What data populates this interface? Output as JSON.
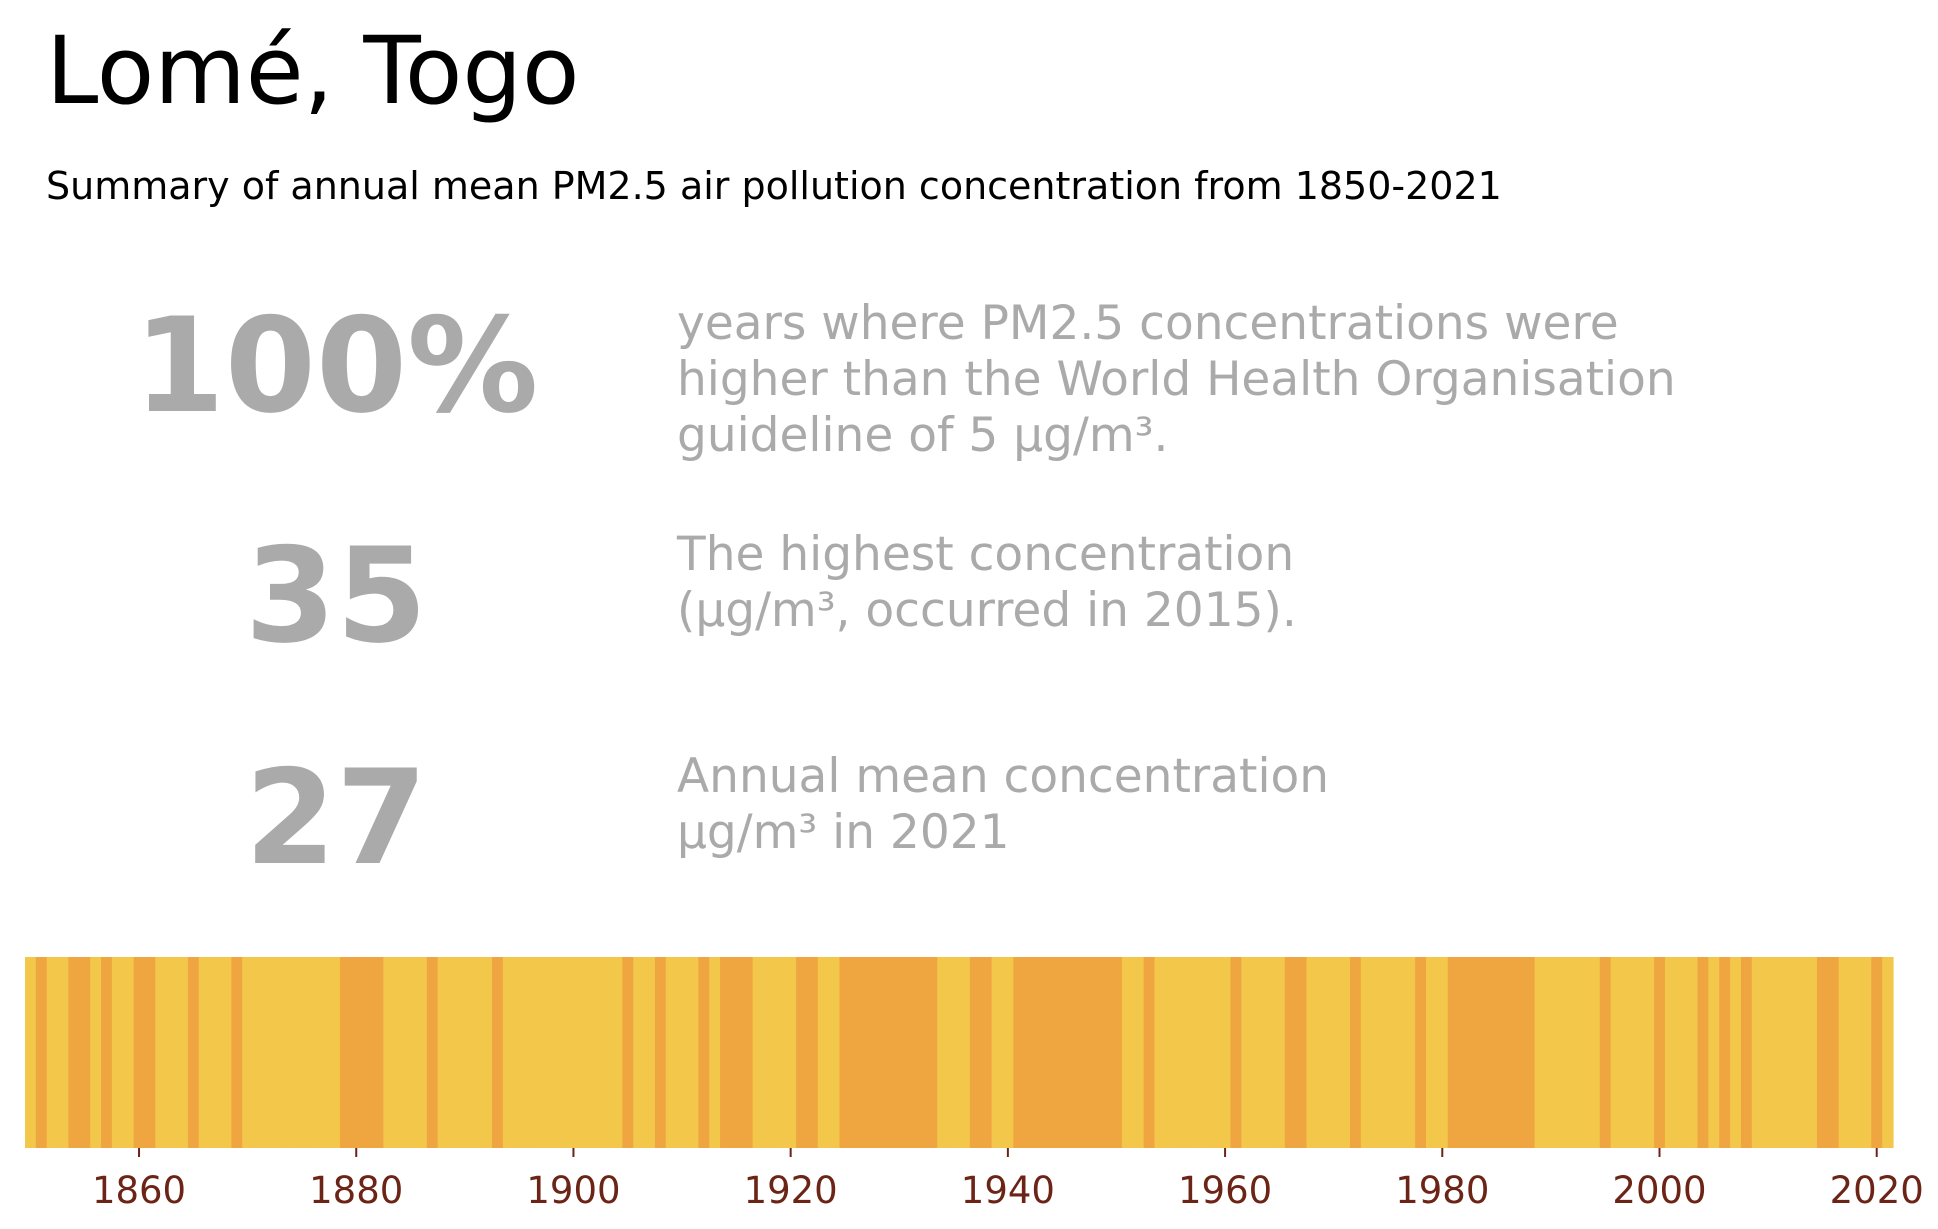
{
  "header": {
    "title": "Lomé, Togo",
    "subtitle": "Summary of annual mean PM2.5 air pollution concentration from 1850-2021"
  },
  "stats": [
    {
      "value": "100%",
      "description": "years where PM2.5 concentrations were\nhigher than the World Health Organisation\nguideline of 5 µg/m³."
    },
    {
      "value": "35",
      "description": "The highest concentration\n(µg/m³, occurred in 2015)."
    },
    {
      "value": "27",
      "description": "Annual mean concentration\nµg/m³ in 2021"
    }
  ],
  "colors": {
    "light_stripe": "#f2c74a",
    "dark_stripe": "#f0a640",
    "stat_text": "#aaaaaa",
    "tick_label": "#6b2416"
  },
  "chart_data": {
    "type": "heatmap",
    "x_range": [
      1850,
      2021
    ],
    "xticks": [
      1860,
      1880,
      1900,
      1920,
      1940,
      1960,
      1980,
      2000,
      2020
    ],
    "light_years": [
      1850,
      1852,
      1853,
      1856,
      1858,
      1859,
      1862,
      1863,
      1864,
      1866,
      1867,
      1868,
      1870,
      1871,
      1872,
      1873,
      1874,
      1875,
      1876,
      1877,
      1878,
      1883,
      1884,
      1885,
      1886,
      1888,
      1889,
      1890,
      1891,
      1892,
      1894,
      1895,
      1896,
      1897,
      1898,
      1899,
      1900,
      1901,
      1902,
      1903,
      1904,
      1906,
      1907,
      1909,
      1910,
      1911,
      1913,
      1917,
      1918,
      1919,
      1920,
      1923,
      1924,
      1934,
      1935,
      1936,
      1939,
      1940,
      1951,
      1952,
      1954,
      1955,
      1956,
      1957,
      1958,
      1959,
      1960,
      1962,
      1963,
      1964,
      1965,
      1968,
      1969,
      1970,
      1971,
      1973,
      1974,
      1975,
      1976,
      1977,
      1979,
      1980,
      1989,
      1990,
      1991,
      1992,
      1993,
      1994,
      1996,
      1997,
      1998,
      1999,
      2001,
      2002,
      2003,
      2005,
      2007,
      2009,
      2010,
      2011,
      2012,
      2013,
      2014,
      2017,
      2018,
      2019,
      2021
    ]
  }
}
